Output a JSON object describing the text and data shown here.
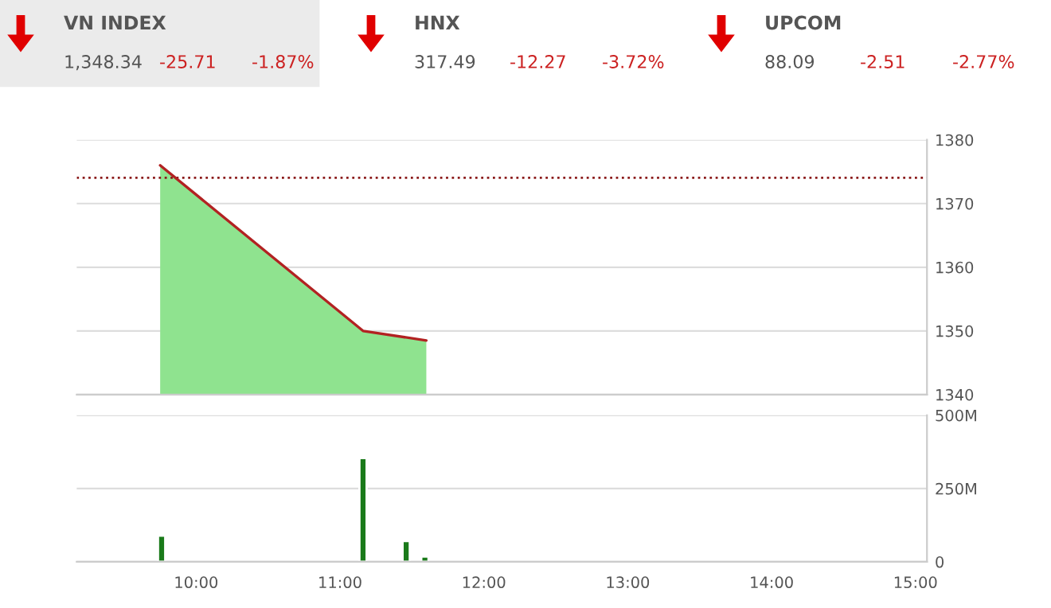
{
  "chart_data": [
    {
      "type": "other",
      "annotations": [
        "VN INDEX",
        "1,348.34",
        "-25.71",
        "-1.87%",
        "HNX",
        "317.49",
        "-12.27",
        "-3.72%",
        "UPCOM",
        "88.09",
        "-2.51",
        "-2.77%"
      ]
    },
    {
      "type": "area",
      "x": [
        9.75,
        11.16,
        11.6
      ],
      "series": [
        {
          "type": "area",
          "color": "#8fe38f",
          "values": [
            1376,
            1350,
            1348.5
          ]
        },
        {
          "type": "line",
          "color": "#b22222",
          "values": [
            1376,
            1350,
            1348.5
          ]
        }
      ],
      "xlim": [
        9.17,
        15.08
      ],
      "ylim": [
        1340,
        1380
      ],
      "yticks": [
        1340,
        1350,
        1360,
        1370,
        1380
      ],
      "ref_lines": [
        {
          "axis": "y",
          "value": 1374.05,
          "color": "#8b1a1a",
          "line_style": "dotted"
        }
      ],
      "grid": "y",
      "tick_labels": "y"
    },
    {
      "type": "bar",
      "x": [
        9.76,
        11.16,
        11.46,
        11.59
      ],
      "series": [
        {
          "color": "#1a7a1a",
          "values": [
            89,
            354,
            71,
            18
          ]
        }
      ],
      "xlim": [
        9.17,
        15.08
      ],
      "xticks": [
        {
          "value": 10,
          "label": "10:00"
        },
        {
          "value": 11,
          "label": "11:00"
        },
        {
          "value": 12,
          "label": "12:00"
        },
        {
          "value": 13,
          "label": "13:00"
        },
        {
          "value": 14,
          "label": "14:00"
        },
        {
          "value": 15,
          "label": "15:00"
        }
      ],
      "ylim": [
        0,
        500
      ],
      "yticks": [
        {
          "value": 0,
          "label": "0"
        },
        {
          "value": 250,
          "label": "250M"
        },
        {
          "value": 500,
          "label": "500M"
        }
      ],
      "grid": "y"
    }
  ]
}
